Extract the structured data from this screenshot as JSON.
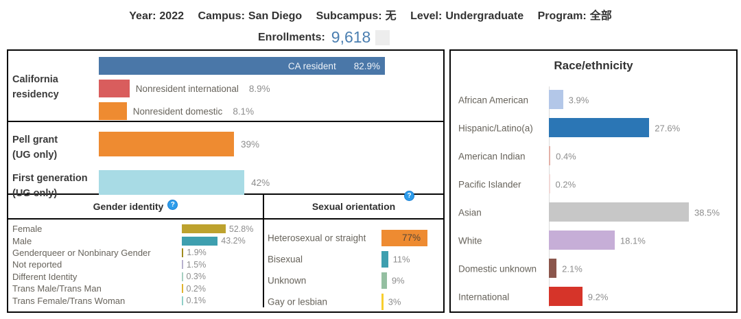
{
  "header": {
    "filters": [
      {
        "label": "Year:",
        "value": "2022"
      },
      {
        "label": "Campus:",
        "value": "San Diego"
      },
      {
        "label": "Subcampus:",
        "value": "无"
      },
      {
        "label": "Level:",
        "value": "Undergraduate"
      },
      {
        "label": "Program:",
        "value": "全部"
      }
    ],
    "enrollments_label": "Enrollments:",
    "enrollments_value": "9,618",
    "enrollments_value_color": "#4a7eb0"
  },
  "ui": {
    "residency_label_line1": "California",
    "residency_label_line2": "residency",
    "pell_label_line1": "Pell grant",
    "pell_label_line2": "(UG only)",
    "firstgen_label_line1": "First generation",
    "firstgen_label_line2": "(UG only)",
    "help_glyph": "?",
    "help_icon_color": "#2d9cea"
  },
  "chart_data": [
    {
      "id": "california_residency",
      "type": "bar",
      "title": "California residency",
      "orientation": "horizontal",
      "categories": [
        "CA resident",
        "Nonresident international",
        "Nonresident domestic"
      ],
      "values": [
        82.9,
        8.9,
        8.1
      ],
      "value_labels": [
        "82.9%",
        "8.9%",
        "8.1%"
      ],
      "colors": [
        "#4a77a8",
        "#d95d5d",
        "#ee8b31"
      ],
      "xlim": [
        0,
        100
      ]
    },
    {
      "id": "pell_grant",
      "type": "bar",
      "title": "Pell grant (UG only)",
      "orientation": "horizontal",
      "categories": [
        "Pell grant (UG only)"
      ],
      "values": [
        39
      ],
      "value_labels": [
        "39%"
      ],
      "colors": [
        "#ee8b31"
      ],
      "xlim": [
        0,
        100
      ]
    },
    {
      "id": "first_generation",
      "type": "bar",
      "title": "First generation (UG only)",
      "orientation": "horizontal",
      "categories": [
        "First generation (UG only)"
      ],
      "values": [
        42
      ],
      "value_labels": [
        "42%"
      ],
      "colors": [
        "#a8dbe5"
      ],
      "xlim": [
        0,
        100
      ]
    },
    {
      "id": "gender_identity",
      "type": "bar",
      "title": "Gender identity",
      "orientation": "horizontal",
      "categories": [
        "Female",
        "Male",
        "Genderqueer or Nonbinary Gender",
        "Not reported",
        "Different Identity",
        "Trans Male/Trans Man",
        "Trans Female/Trans Woman"
      ],
      "values": [
        52.8,
        43.2,
        1.9,
        1.5,
        0.3,
        0.2,
        0.1
      ],
      "value_labels": [
        "52.8%",
        "43.2%",
        "1.9%",
        "1.5%",
        "0.3%",
        "0.2%",
        "0.1%"
      ],
      "colors": [
        "#bda22e",
        "#3e9faf",
        "#a08b1e",
        "#b7b1ce",
        "#a5cfc0",
        "#e0b32e",
        "#8fcfc7"
      ],
      "xlim": [
        0,
        100
      ]
    },
    {
      "id": "sexual_orientation",
      "type": "bar",
      "title": "Sexual orientation",
      "orientation": "horizontal",
      "categories": [
        "Heterosexual or straight",
        "Bisexual",
        "Unknown",
        "Gay or lesbian"
      ],
      "values": [
        77,
        11,
        9,
        3
      ],
      "value_labels": [
        "77%",
        "11%",
        "9%",
        "3%"
      ],
      "colors": [
        "#ee8b31",
        "#3e9faf",
        "#94bfa1",
        "#f8ce2e"
      ],
      "xlim": [
        0,
        100
      ]
    },
    {
      "id": "race_ethnicity",
      "type": "bar",
      "title": "Race/ethnicity",
      "orientation": "horizontal",
      "categories": [
        "African American",
        "Hispanic/Latino(a)",
        "American Indian",
        "Pacific Islander",
        "Asian",
        "White",
        "Domestic unknown",
        "International"
      ],
      "values": [
        3.9,
        27.6,
        0.4,
        0.2,
        38.5,
        18.1,
        2.1,
        9.2
      ],
      "value_labels": [
        "3.9%",
        "27.6%",
        "0.4%",
        "0.2%",
        "38.5%",
        "18.1%",
        "2.1%",
        "9.2%"
      ],
      "colors": [
        "#b3c7e8",
        "#2b76b5",
        "#e3b1a8",
        "#f2d9d7",
        "#c7c7c7",
        "#c6aed7",
        "#8b564c",
        "#d63429"
      ],
      "xlim": [
        0,
        100
      ]
    }
  ]
}
